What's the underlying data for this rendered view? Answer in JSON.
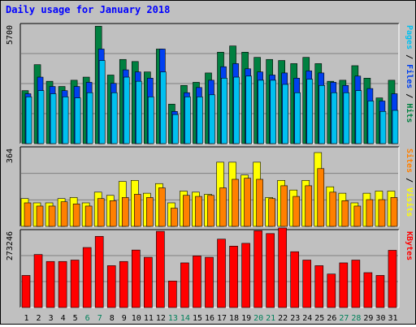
{
  "chart_data": [
    {
      "type": "bar",
      "title": "Daily usage for January 2018",
      "categories": [
        "1",
        "2",
        "3",
        "4",
        "5",
        "6",
        "7",
        "8",
        "9",
        "10",
        "11",
        "12",
        "13",
        "14",
        "15",
        "16",
        "17",
        "18",
        "19",
        "20",
        "21",
        "22",
        "23",
        "24",
        "25",
        "26",
        "27",
        "28",
        "29",
        "30",
        "31"
      ],
      "weekend_days": [
        "6",
        "7",
        "13",
        "14",
        "20",
        "21",
        "27",
        "28"
      ],
      "y_max_label": "5700",
      "ylim": [
        0,
        5700
      ],
      "legend": [
        "Pages",
        "/",
        "Files",
        "/",
        "Hits"
      ],
      "legend_colors": [
        "#00c0f0",
        "#000000",
        "#0040f0",
        "#000000",
        "#008040"
      ],
      "series": [
        {
          "name": "Hits",
          "color": "#008040",
          "values": [
            2550,
            3800,
            3000,
            2750,
            3050,
            3200,
            5650,
            3300,
            4050,
            3950,
            3450,
            4550,
            1900,
            2800,
            2950,
            3400,
            4400,
            4700,
            4400,
            4150,
            4050,
            4000,
            3850,
            4150,
            3850,
            3000,
            3050,
            3750,
            3150,
            2200,
            3050
          ]
        },
        {
          "name": "Files",
          "color": "#0040f0",
          "values": [
            2400,
            3200,
            2750,
            2550,
            2750,
            2950,
            4550,
            2900,
            3550,
            3450,
            3150,
            4550,
            1550,
            2450,
            2700,
            3050,
            3700,
            3850,
            3600,
            3450,
            3300,
            3400,
            3150,
            3500,
            3400,
            2950,
            2800,
            3250,
            2650,
            2050,
            2400
          ]
        },
        {
          "name": "Pages",
          "color": "#00c0f0",
          "values": [
            2250,
            2550,
            2400,
            2250,
            2200,
            2450,
            4000,
            2450,
            3200,
            3000,
            2250,
            3450,
            1400,
            2250,
            2250,
            2350,
            3150,
            3200,
            3250,
            3050,
            3050,
            2850,
            2450,
            3100,
            2800,
            2450,
            2450,
            2550,
            2050,
            1550,
            1600
          ]
        }
      ]
    },
    {
      "type": "bar",
      "y_max_label": "364",
      "ylim": [
        0,
        364
      ],
      "legend": [
        "Sites",
        "/",
        "Visits"
      ],
      "legend_colors": [
        "#ff8000",
        "#000000",
        "#ffff00"
      ],
      "series": [
        {
          "name": "Visits",
          "color": "#ffff00",
          "values": [
            130,
            110,
            110,
            130,
            135,
            110,
            160,
            145,
            210,
            215,
            155,
            200,
            110,
            165,
            160,
            150,
            300,
            300,
            240,
            300,
            135,
            215,
            170,
            215,
            345,
            185,
            155,
            110,
            155,
            165,
            165
          ]
        },
        {
          "name": "Sites",
          "color": "#ff8000",
          "values": [
            110,
            95,
            95,
            115,
            105,
            95,
            130,
            120,
            135,
            150,
            135,
            180,
            85,
            145,
            140,
            145,
            180,
            220,
            225,
            220,
            130,
            190,
            140,
            190,
            270,
            160,
            120,
            95,
            125,
            125,
            135
          ]
        }
      ]
    },
    {
      "type": "bar",
      "y_max_label": "273246",
      "ylim": [
        0,
        273246
      ],
      "legend": [
        "KBytes"
      ],
      "legend_colors": [
        "#ff0000"
      ],
      "series": [
        {
          "name": "KBytes",
          "color": "#ff0000",
          "values": [
            115000,
            190000,
            165000,
            165000,
            170000,
            215000,
            255000,
            150000,
            165000,
            206000,
            180000,
            273000,
            95000,
            160000,
            185000,
            180000,
            245000,
            220000,
            230000,
            275000,
            265000,
            285000,
            200000,
            170000,
            150000,
            120000,
            160000,
            170000,
            125000,
            115000,
            205000
          ]
        }
      ]
    }
  ]
}
